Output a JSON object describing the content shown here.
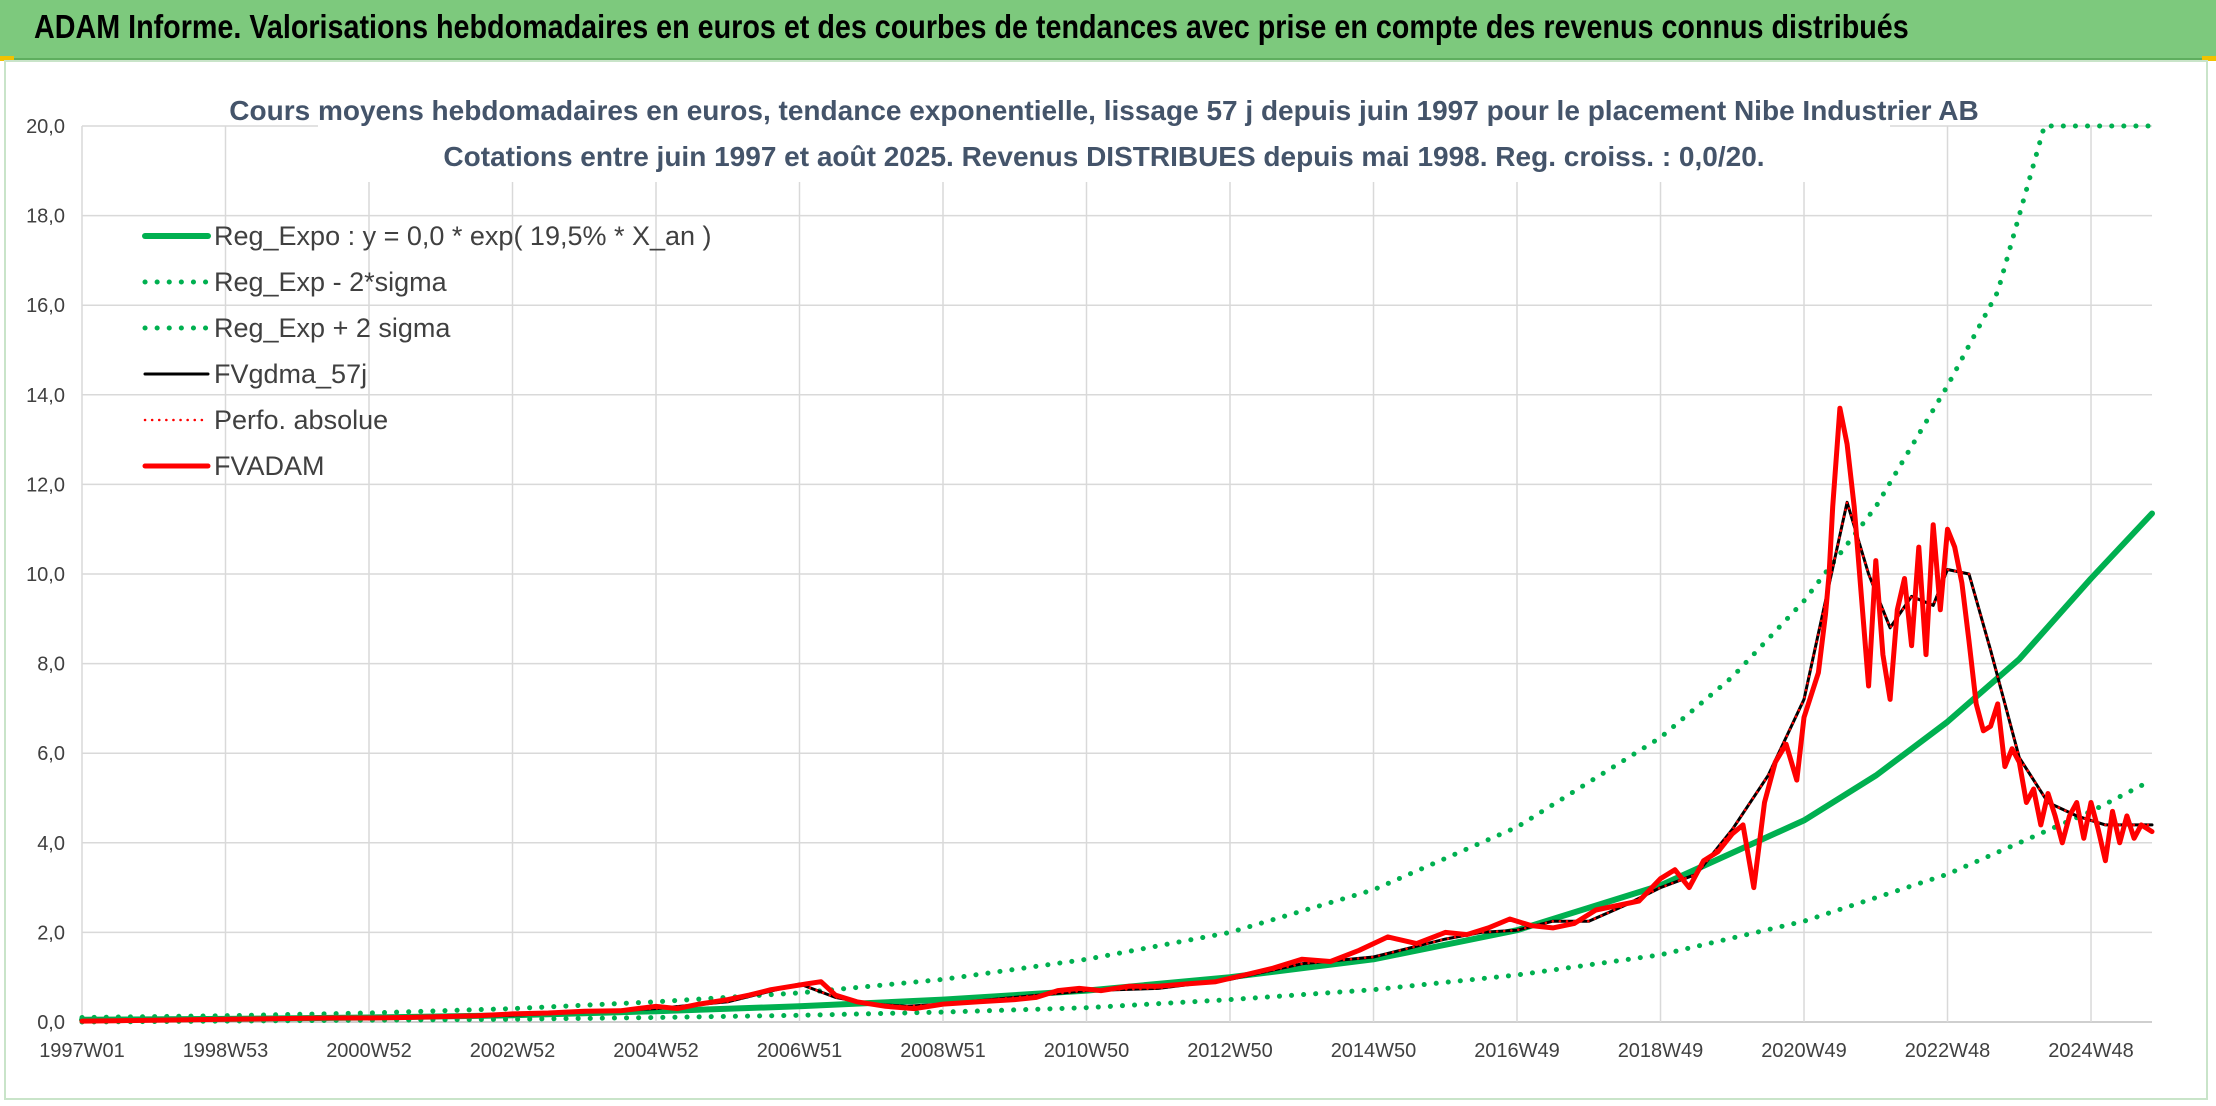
{
  "header": {
    "title": "ADAM Informe. Valorisations hebdomadaires en euros et des courbes de tendances avec prise en compte des revenus connus distribués"
  },
  "colors": {
    "banner": "#7dc97d",
    "trend_green": "#00b050",
    "fv_black": "#000000",
    "fvadam_red": "#ff0000",
    "grid": "#d9d9d9",
    "title_text": "#44546a"
  },
  "chart_data": {
    "type": "line",
    "title_line1": "Cours moyens hebdomadaires en euros, tendance exponentielle, lissage 57 j depuis juin 1997 pour le placement Nibe Industrier AB",
    "title_line2": "Cotations entre juin 1997 et août 2025. Revenus DISTRIBUES depuis mai 1998. Reg. croiss. : 0,0/20.",
    "ylim": [
      0,
      20
    ],
    "y_ticks": [
      "0,0",
      "2,0",
      "4,0",
      "6,0",
      "8,0",
      "10,0",
      "12,0",
      "14,0",
      "16,0",
      "18,0",
      "20,0"
    ],
    "x_tick_labels": [
      "1997W01",
      "1998W53",
      "2000W52",
      "2002W52",
      "2004W52",
      "2006W51",
      "2008W51",
      "2010W50",
      "2012W50",
      "2014W50",
      "2016W49",
      "2018W49",
      "2020W49",
      "2022W48",
      "2024W48"
    ],
    "x_tick_years": [
      1997.0,
      1999.0,
      2001.0,
      2003.0,
      2005.0,
      2007.0,
      2009.0,
      2011.0,
      2013.0,
      2015.0,
      2017.0,
      2019.0,
      2021.0,
      2023.0,
      2025.0
    ],
    "x_range": [
      1997.0,
      2025.85
    ],
    "grid": true,
    "legend_position": "top-left",
    "legend": [
      {
        "label": "Reg_Expo : y = 0,0 * exp( 19,5% *  X_an )",
        "style": "solid-thick",
        "color": "#00b050"
      },
      {
        "label": "Reg_Exp - 2*sigma",
        "style": "dotted",
        "color": "#00b050"
      },
      {
        "label": "Reg_Exp + 2 sigma",
        "style": "dotted",
        "color": "#00b050"
      },
      {
        "label": "FVgdma_57j",
        "style": "solid",
        "color": "#000000"
      },
      {
        "label": "Perfo. absolue",
        "style": "dotted",
        "color": "#ff0000"
      },
      {
        "label": "FVADAM",
        "style": "solid-thick",
        "color": "#ff0000"
      }
    ],
    "series": [
      {
        "name": "Reg_Expo : y = 0,0 * exp( 19,5% *  X_an )",
        "x": [
          1997.0,
          1999.0,
          2001.0,
          2003.0,
          2005.0,
          2007.0,
          2009.0,
          2011.0,
          2013.0,
          2015.0,
          2017.0,
          2019.0,
          2021.0,
          2022.0,
          2023.0,
          2024.0,
          2025.0,
          2025.85
        ],
        "values": [
          0.05,
          0.07,
          0.1,
          0.15,
          0.24,
          0.35,
          0.5,
          0.7,
          1.0,
          1.4,
          2.05,
          3.05,
          4.5,
          5.5,
          6.7,
          8.1,
          9.9,
          11.35
        ]
      },
      {
        "name": "Reg_Exp - 2*sigma",
        "x": [
          1997.0,
          1999.0,
          2001.0,
          2003.0,
          2005.0,
          2007.0,
          2009.0,
          2011.0,
          2013.0,
          2015.0,
          2017.0,
          2019.0,
          2021.0,
          2023.0,
          2024.0,
          2025.0,
          2025.85
        ],
        "values": [
          0.0,
          0.02,
          0.04,
          0.06,
          0.1,
          0.15,
          0.22,
          0.32,
          0.5,
          0.72,
          1.05,
          1.5,
          2.25,
          3.3,
          4.0,
          4.7,
          5.4
        ]
      },
      {
        "name": "Reg_Exp + 2 sigma",
        "x": [
          1997.0,
          1999.0,
          2001.0,
          2003.0,
          2005.0,
          2007.0,
          2009.0,
          2011.0,
          2013.0,
          2015.0,
          2017.0,
          2019.0,
          2020.0,
          2021.0,
          2022.0,
          2023.0,
          2023.7,
          2024.35,
          2025.85
        ],
        "values": [
          0.1,
          0.14,
          0.2,
          0.3,
          0.45,
          0.65,
          0.95,
          1.4,
          2.0,
          2.95,
          4.35,
          6.35,
          7.7,
          9.4,
          11.5,
          14.2,
          16.3,
          20.0,
          20.0
        ]
      },
      {
        "name": "FVgdma_57j",
        "x": [
          1997.0,
          1998.0,
          1999.0,
          2000.0,
          2001.0,
          2002.0,
          2003.0,
          2004.0,
          2005.0,
          2006.0,
          2006.5,
          2007.0,
          2007.5,
          2008.0,
          2008.5,
          2009.0,
          2010.0,
          2011.0,
          2012.0,
          2013.0,
          2014.0,
          2015.0,
          2016.0,
          2016.5,
          2017.0,
          2017.5,
          2018.0,
          2018.5,
          2019.0,
          2019.5,
          2020.0,
          2020.5,
          2021.0,
          2021.3,
          2021.6,
          2021.9,
          2022.2,
          2022.5,
          2022.8,
          2023.0,
          2023.3,
          2023.6,
          2024.0,
          2024.4,
          2024.8,
          2025.2,
          2025.6,
          2025.85
        ],
        "values": [
          0.02,
          0.03,
          0.05,
          0.07,
          0.08,
          0.1,
          0.15,
          0.22,
          0.3,
          0.45,
          0.65,
          0.85,
          0.55,
          0.4,
          0.35,
          0.4,
          0.55,
          0.7,
          0.75,
          0.95,
          1.3,
          1.45,
          1.85,
          2.0,
          2.05,
          2.25,
          2.25,
          2.6,
          3.0,
          3.3,
          4.3,
          5.5,
          7.2,
          9.4,
          11.6,
          10.0,
          8.8,
          9.5,
          9.3,
          10.1,
          10.0,
          8.3,
          5.9,
          4.9,
          4.6,
          4.4,
          4.4,
          4.4
        ]
      },
      {
        "name": "Perfo. absolue",
        "x": [
          1997.0,
          1998.0,
          1999.0,
          2000.0,
          2001.0,
          2002.0,
          2003.0,
          2004.0,
          2005.0,
          2006.0,
          2006.5,
          2007.0,
          2007.5,
          2008.0,
          2008.5,
          2009.0,
          2010.0,
          2011.0,
          2012.0,
          2013.0,
          2014.0,
          2015.0,
          2016.0,
          2016.5,
          2017.0,
          2017.5,
          2018.0,
          2018.5,
          2019.0,
          2019.5,
          2020.0,
          2020.5,
          2021.0,
          2021.3,
          2021.6,
          2021.9,
          2022.2,
          2022.5,
          2022.8,
          2023.0,
          2023.3,
          2023.6,
          2024.0,
          2024.4,
          2024.8,
          2025.2,
          2025.6,
          2025.85
        ],
        "values": [
          0.02,
          0.03,
          0.05,
          0.07,
          0.08,
          0.1,
          0.15,
          0.22,
          0.3,
          0.45,
          0.65,
          0.85,
          0.55,
          0.4,
          0.35,
          0.4,
          0.55,
          0.7,
          0.75,
          0.95,
          1.3,
          1.45,
          1.85,
          2.0,
          2.05,
          2.25,
          2.25,
          2.6,
          3.0,
          3.3,
          4.3,
          5.5,
          7.2,
          9.4,
          11.6,
          10.0,
          8.8,
          9.5,
          9.3,
          10.1,
          10.0,
          8.3,
          5.9,
          4.9,
          4.6,
          4.4,
          4.4,
          4.4
        ]
      },
      {
        "name": "FVADAM",
        "x": [
          1997.0,
          1997.5,
          1998.0,
          1998.5,
          1999.0,
          1999.5,
          2000.0,
          2000.5,
          2001.0,
          2001.5,
          2002.0,
          2002.5,
          2003.0,
          2003.5,
          2004.0,
          2004.5,
          2005.0,
          2005.3,
          2005.6,
          2006.0,
          2006.3,
          2006.6,
          2006.9,
          2007.1,
          2007.3,
          2007.5,
          2007.8,
          2008.2,
          2008.6,
          2009.0,
          2009.5,
          2010.0,
          2010.3,
          2010.6,
          2010.9,
          2011.2,
          2011.6,
          2012.0,
          2012.4,
          2012.8,
          2013.2,
          2013.6,
          2014.0,
          2014.4,
          2014.8,
          2015.2,
          2015.6,
          2016.0,
          2016.3,
          2016.6,
          2016.9,
          2017.2,
          2017.5,
          2017.8,
          2018.1,
          2018.4,
          2018.7,
          2019.0,
          2019.2,
          2019.4,
          2019.6,
          2019.8,
          2020.0,
          2020.15,
          2020.3,
          2020.45,
          2020.6,
          2020.75,
          2020.9,
          2021.0,
          2021.1,
          2021.2,
          2021.3,
          2021.35,
          2021.4,
          2021.5,
          2021.6,
          2021.7,
          2021.8,
          2021.9,
          2022.0,
          2022.1,
          2022.2,
          2022.3,
          2022.4,
          2022.5,
          2022.6,
          2022.7,
          2022.8,
          2022.9,
          2023.0,
          2023.1,
          2023.2,
          2023.3,
          2023.4,
          2023.5,
          2023.6,
          2023.7,
          2023.8,
          2023.9,
          2024.0,
          2024.1,
          2024.2,
          2024.3,
          2024.4,
          2024.5,
          2024.6,
          2024.7,
          2024.8,
          2024.9,
          2025.0,
          2025.1,
          2025.2,
          2025.3,
          2025.4,
          2025.5,
          2025.6,
          2025.7,
          2025.85
        ],
        "values": [
          0.02,
          0.03,
          0.04,
          0.05,
          0.06,
          0.07,
          0.08,
          0.09,
          0.09,
          0.1,
          0.12,
          0.14,
          0.18,
          0.2,
          0.24,
          0.25,
          0.35,
          0.3,
          0.4,
          0.5,
          0.6,
          0.72,
          0.8,
          0.85,
          0.9,
          0.6,
          0.45,
          0.35,
          0.3,
          0.4,
          0.45,
          0.5,
          0.55,
          0.7,
          0.75,
          0.7,
          0.8,
          0.8,
          0.85,
          0.9,
          1.05,
          1.2,
          1.4,
          1.35,
          1.6,
          1.9,
          1.75,
          2.0,
          1.95,
          2.1,
          2.3,
          2.15,
          2.1,
          2.2,
          2.5,
          2.6,
          2.7,
          3.2,
          3.4,
          3.0,
          3.6,
          3.8,
          4.2,
          4.4,
          3.0,
          4.9,
          5.8,
          6.2,
          5.4,
          6.8,
          7.3,
          7.8,
          9.1,
          10.0,
          11.5,
          13.7,
          12.9,
          11.5,
          9.5,
          7.5,
          10.3,
          8.2,
          7.2,
          9.2,
          9.9,
          8.4,
          10.6,
          8.2,
          11.1,
          9.2,
          11.0,
          10.6,
          9.8,
          8.5,
          7.1,
          6.5,
          6.6,
          7.1,
          5.7,
          6.1,
          5.8,
          4.9,
          5.2,
          4.4,
          5.1,
          4.6,
          4.0,
          4.6,
          4.9,
          4.1,
          4.9,
          4.3,
          3.6,
          4.7,
          4.0,
          4.6,
          4.1,
          4.4,
          4.25
        ]
      }
    ]
  }
}
